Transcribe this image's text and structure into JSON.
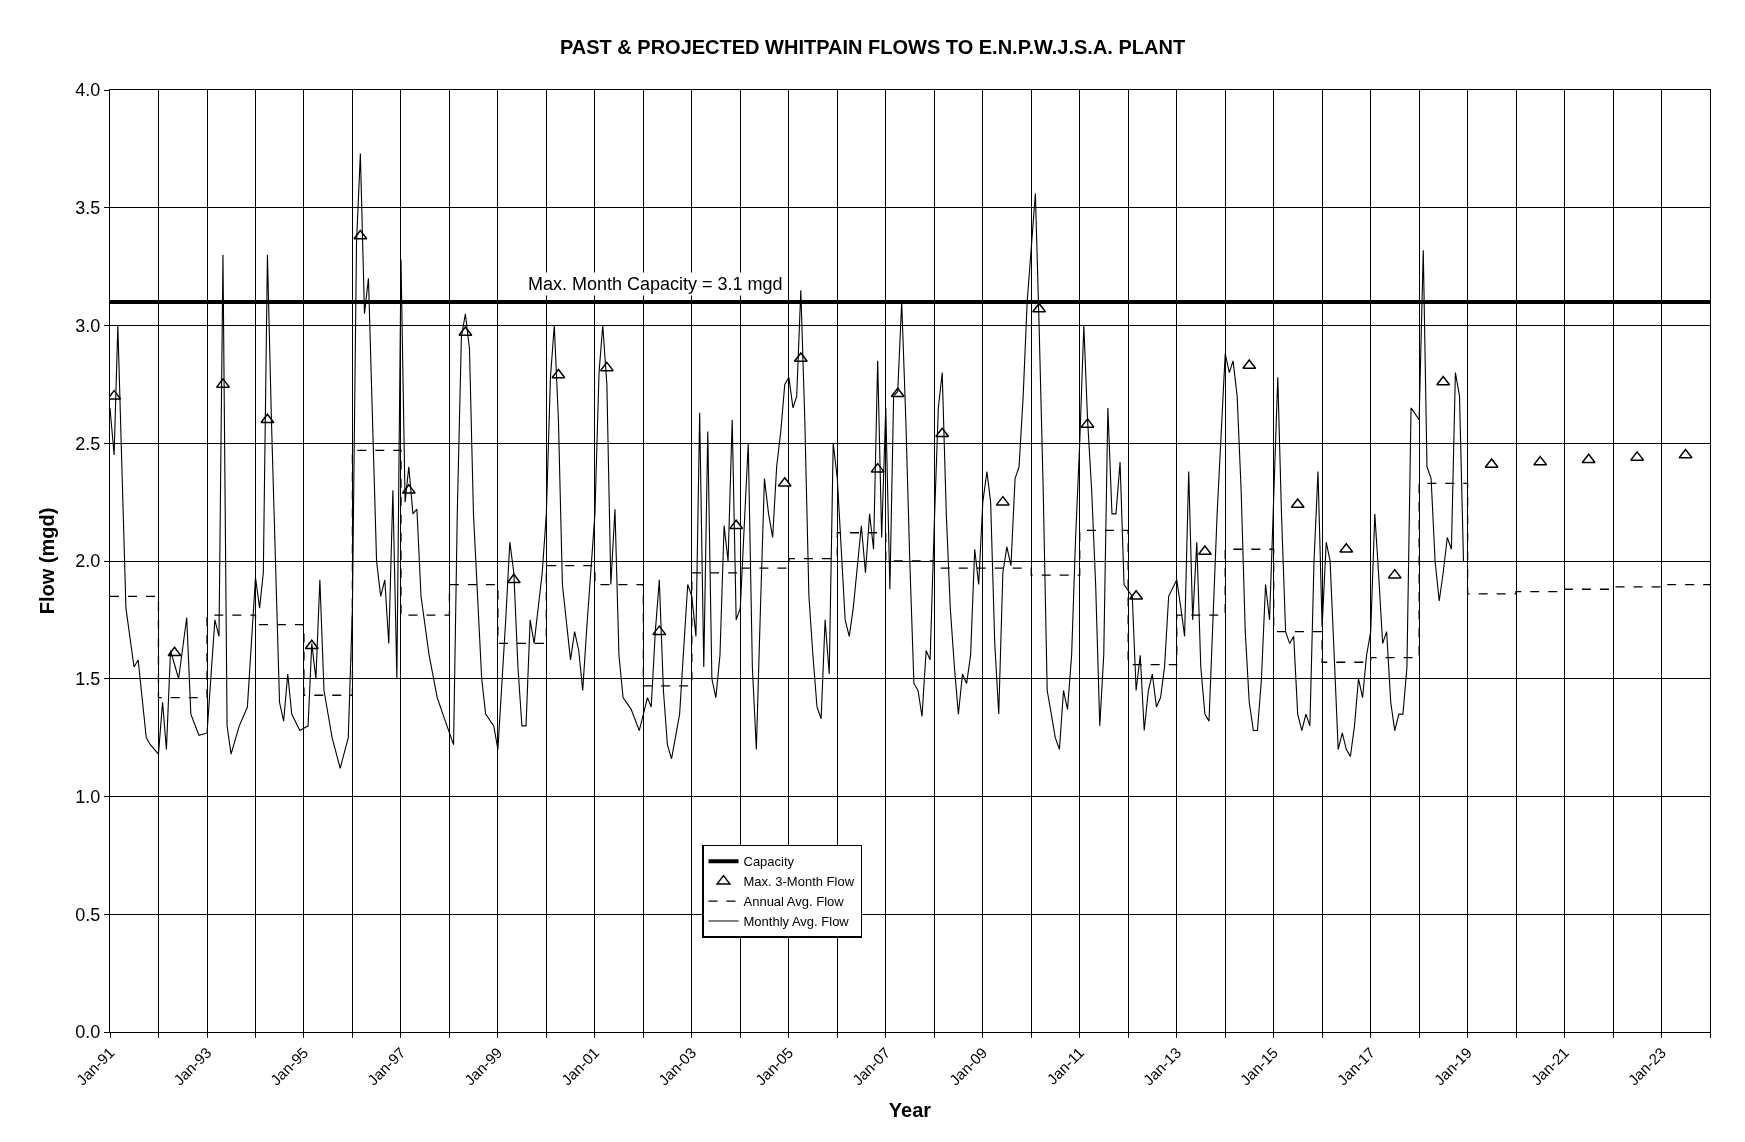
{
  "chart_data": {
    "type": "line",
    "title": "PAST & PROJECTED WHITPAIN FLOWS TO E.N.P.W.J.S.A. PLANT",
    "xlabel": "Year",
    "ylabel": "Flow (mgd)",
    "xlim": [
      "1991-01",
      "2024-01"
    ],
    "ylim": [
      0,
      4
    ],
    "xticks": [
      {
        "value": "1991-01",
        "label": "Jan-91"
      },
      {
        "value": "1992-01",
        "label": null
      },
      {
        "value": "1993-01",
        "label": "Jan-93"
      },
      {
        "value": "1994-01",
        "label": null
      },
      {
        "value": "1995-01",
        "label": "Jan-95"
      },
      {
        "value": "1996-01",
        "label": null
      },
      {
        "value": "1997-01",
        "label": "Jan-97"
      },
      {
        "value": "1998-01",
        "label": null
      },
      {
        "value": "1999-01",
        "label": "Jan-99"
      },
      {
        "value": "2000-01",
        "label": null
      },
      {
        "value": "2001-01",
        "label": "Jan-01"
      },
      {
        "value": "2002-01",
        "label": null
      },
      {
        "value": "2003-01",
        "label": "Jan-03"
      },
      {
        "value": "2004-01",
        "label": null
      },
      {
        "value": "2005-01",
        "label": "Jan-05"
      },
      {
        "value": "2006-01",
        "label": null
      },
      {
        "value": "2007-01",
        "label": "Jan-07"
      },
      {
        "value": "2008-01",
        "label": null
      },
      {
        "value": "2009-01",
        "label": "Jan-09"
      },
      {
        "value": "2010-01",
        "label": null
      },
      {
        "value": "2011-01",
        "label": "Jan-11"
      },
      {
        "value": "2012-01",
        "label": null
      },
      {
        "value": "2013-01",
        "label": "Jan-13"
      },
      {
        "value": "2014-01",
        "label": null
      },
      {
        "value": "2015-01",
        "label": "Jan-15"
      },
      {
        "value": "2016-01",
        "label": null
      },
      {
        "value": "2017-01",
        "label": "Jan-17"
      },
      {
        "value": "2018-01",
        "label": null
      },
      {
        "value": "2019-01",
        "label": "Jan-19"
      },
      {
        "value": "2020-01",
        "label": null
      },
      {
        "value": "2021-01",
        "label": "Jan-21"
      },
      {
        "value": "2022-01",
        "label": null
      },
      {
        "value": "2023-01",
        "label": "Jan-23"
      },
      {
        "value": "2024-01",
        "label": null
      }
    ],
    "yticks": [
      {
        "value": 0,
        "label": "0.0"
      },
      {
        "value": 0.5,
        "label": "0.5"
      },
      {
        "value": 1,
        "label": "1.0"
      },
      {
        "value": 1.5,
        "label": "1.5"
      },
      {
        "value": 2,
        "label": "2.0"
      },
      {
        "value": 2.5,
        "label": "2.5"
      },
      {
        "value": 3,
        "label": "3.0"
      },
      {
        "value": 3.5,
        "label": "3.5"
      },
      {
        "value": 4,
        "label": "4.0"
      }
    ],
    "grid": true,
    "legend": "bottom",
    "annotations": [
      {
        "text": "Max. Month Capacity = 3.1 mgd",
        "x": "2002-04",
        "y": 3.1
      }
    ],
    "series": [
      {
        "name": "Capacity",
        "color": "#000000",
        "line_style": "solid",
        "marker": "none",
        "x": [
          "1991-01",
          "2024-01"
        ],
        "values": [
          3.1,
          3.1
        ]
      },
      {
        "name": "Max. 3-Month Flow",
        "type": "scatter",
        "color": "#000000",
        "marker": "triangle",
        "x": [
          "1991-02",
          "1992-05",
          "1993-05",
          "1994-04",
          "1995-03",
          "1996-03",
          "1997-03",
          "1998-05",
          "1999-05",
          "2000-04",
          "2001-04",
          "2002-05",
          "2003-12",
          "2004-12",
          "2005-04",
          "2006-11",
          "2007-04",
          "2008-03",
          "2009-06",
          "2010-03",
          "2011-03",
          "2012-03",
          "2013-08",
          "2014-07",
          "2015-07",
          "2016-07",
          "2017-07",
          "2018-07",
          "2019-07",
          "2020-07",
          "2021-07",
          "2022-07",
          "2023-07"
        ],
        "values": [
          2.7,
          1.61,
          2.75,
          2.6,
          1.64,
          3.38,
          2.3,
          2.97,
          1.92,
          2.79,
          2.82,
          1.7,
          2.15,
          2.33,
          2.86,
          2.39,
          2.71,
          2.54,
          2.25,
          3.07,
          2.58,
          1.85,
          2.04,
          2.83,
          2.24,
          2.05,
          1.94,
          2.76,
          2.41,
          2.42,
          2.43,
          2.44,
          2.45
        ]
      },
      {
        "name": "Annual Avg. Flow",
        "type": "step",
        "color": "#000000",
        "line_style": "dashed",
        "marker": "none",
        "x": [
          "1991-01",
          "1992-01",
          "1993-01",
          "1994-01",
          "1995-01",
          "1996-01",
          "1997-01",
          "1998-01",
          "1999-01",
          "2000-01",
          "2001-01",
          "2002-01",
          "2003-01",
          "2004-01",
          "2005-01",
          "2006-01",
          "2007-01",
          "2008-01",
          "2009-01",
          "2010-01",
          "2011-01",
          "2012-01",
          "2013-01",
          "2014-01",
          "2015-01",
          "2016-01",
          "2017-01",
          "2018-01",
          "2019-01",
          "2020-01",
          "2021-01",
          "2022-01",
          "2023-01",
          "2024-01"
        ],
        "values": [
          1.85,
          1.42,
          1.77,
          1.73,
          1.43,
          2.47,
          1.77,
          1.9,
          1.65,
          1.98,
          1.9,
          1.47,
          1.95,
          1.97,
          2.01,
          2.12,
          2.0,
          1.97,
          1.97,
          1.94,
          2.13,
          1.56,
          1.77,
          2.05,
          1.7,
          1.57,
          1.59,
          2.33,
          1.86,
          1.87,
          1.88,
          1.89,
          1.9,
          1.9
        ]
      },
      {
        "name": "Monthly Avg. Flow",
        "color": "#000000",
        "line_style": "solid",
        "marker": "none",
        "x": [
          "1991-01",
          "1991-02",
          "1991-03",
          "1991-05",
          "1991-07",
          "1991-08",
          "1991-10",
          "1991-11",
          "1992-01",
          "1992-02",
          "1992-03",
          "1992-04",
          "1992-06",
          "1992-08",
          "1992-09",
          "1992-11",
          "1993-01",
          "1993-03",
          "1993-04",
          "1993-05",
          "1993-06",
          "1993-07",
          "1993-09",
          "1993-11",
          "1994-01",
          "1994-02",
          "1994-03",
          "1994-04",
          "1994-05",
          "1994-07",
          "1994-08",
          "1994-09",
          "1994-10",
          "1994-12",
          "1995-02",
          "1995-03",
          "1995-04",
          "1995-05",
          "1995-06",
          "1995-08",
          "1995-10",
          "1995-12",
          "1996-01",
          "1996-02",
          "1996-03",
          "1996-04",
          "1996-05",
          "1996-07",
          "1996-08",
          "1996-09",
          "1996-10",
          "1996-11",
          "1996-12",
          "1997-01",
          "1997-02",
          "1997-03",
          "1997-04",
          "1997-05",
          "1997-06",
          "1997-08",
          "1997-10",
          "1997-12",
          "1998-02",
          "1998-03",
          "1998-04",
          "1998-05",
          "1998-06",
          "1998-07",
          "1998-09",
          "1998-10",
          "1998-12",
          "1999-01",
          "1999-03",
          "1999-04",
          "1999-05",
          "1999-06",
          "1999-07",
          "1999-08",
          "1999-09",
          "1999-10",
          "1999-12",
          "2000-01",
          "2000-02",
          "2000-03",
          "2000-04",
          "2000-05",
          "2000-07",
          "2000-08",
          "2000-09",
          "2000-10",
          "2000-11",
          "2001-01",
          "2001-02",
          "2001-03",
          "2001-04",
          "2001-05",
          "2001-06",
          "2001-07",
          "2001-08",
          "2001-10",
          "2001-12",
          "2002-02",
          "2002-03",
          "2002-04",
          "2002-05",
          "2002-06",
          "2002-07",
          "2002-08",
          "2002-10",
          "2002-12",
          "2003-01",
          "2003-02",
          "2003-03",
          "2003-04",
          "2003-05",
          "2003-06",
          "2003-07",
          "2003-08",
          "2003-09",
          "2003-10",
          "2003-11",
          "2003-12",
          "2004-01",
          "2004-03",
          "2004-04",
          "2004-05",
          "2004-06",
          "2004-07",
          "2004-08",
          "2004-09",
          "2004-10",
          "2004-11",
          "2004-12",
          "2005-01",
          "2005-02",
          "2005-03",
          "2005-04",
          "2005-05",
          "2005-06",
          "2005-07",
          "2005-08",
          "2005-09",
          "2005-10",
          "2005-11",
          "2005-12",
          "2006-01",
          "2006-03",
          "2006-04",
          "2006-05",
          "2006-07",
          "2006-08",
          "2006-09",
          "2006-10",
          "2006-11",
          "2006-12",
          "2007-01",
          "2007-02",
          "2007-03",
          "2007-04",
          "2007-05",
          "2007-06",
          "2007-07",
          "2007-08",
          "2007-09",
          "2007-10",
          "2007-11",
          "2007-12",
          "2008-01",
          "2008-02",
          "2008-03",
          "2008-04",
          "2008-05",
          "2008-06",
          "2008-07",
          "2008-08",
          "2008-09",
          "2008-10",
          "2008-11",
          "2008-12",
          "2009-01",
          "2009-02",
          "2009-03",
          "2009-04",
          "2009-05",
          "2009-06",
          "2009-07",
          "2009-08",
          "2009-09",
          "2009-10",
          "2009-11",
          "2009-12",
          "2010-02",
          "2010-03",
          "2010-04",
          "2010-05",
          "2010-06",
          "2010-07",
          "2010-08",
          "2010-09",
          "2010-10",
          "2010-11",
          "2010-12",
          "2011-01",
          "2011-02",
          "2011-03",
          "2011-04",
          "2011-05",
          "2011-06",
          "2011-07",
          "2011-08",
          "2011-09",
          "2011-10",
          "2011-11",
          "2011-12",
          "2012-02",
          "2012-03",
          "2012-04",
          "2012-05",
          "2012-06",
          "2012-07",
          "2012-08",
          "2012-09",
          "2012-10",
          "2012-11",
          "2013-01",
          "2013-02",
          "2013-03",
          "2013-04",
          "2013-05",
          "2013-06",
          "2013-07",
          "2013-08",
          "2013-09",
          "2013-11",
          "2014-01",
          "2014-02",
          "2014-03",
          "2014-04",
          "2014-05",
          "2014-06",
          "2014-07",
          "2014-08",
          "2014-09",
          "2014-10",
          "2014-11",
          "2014-12",
          "2015-02",
          "2015-03",
          "2015-04",
          "2015-05",
          "2015-06",
          "2015-07",
          "2015-08",
          "2015-09",
          "2015-10",
          "2015-11",
          "2015-12",
          "2016-01",
          "2016-02",
          "2016-03",
          "2016-04",
          "2016-05",
          "2016-06",
          "2016-07",
          "2016-08",
          "2016-09",
          "2016-10",
          "2016-11",
          "2016-12",
          "2017-01",
          "2017-02",
          "2017-03",
          "2017-04",
          "2017-05",
          "2017-06",
          "2017-07",
          "2017-08",
          "2017-09",
          "2017-10",
          "2017-11",
          "2018-01",
          "2018-02",
          "2018-03",
          "2018-04",
          "2018-05",
          "2018-06",
          "2018-07",
          "2018-08",
          "2018-09",
          "2018-10",
          "2018-11",
          "2018-12"
        ],
        "values": [
          2.65,
          2.45,
          3.0,
          1.8,
          1.55,
          1.58,
          1.25,
          1.22,
          1.18,
          1.4,
          1.2,
          1.62,
          1.5,
          1.76,
          1.35,
          1.26,
          1.27,
          1.75,
          1.68,
          3.3,
          1.3,
          1.18,
          1.3,
          1.38,
          1.93,
          1.8,
          1.95,
          3.3,
          2.6,
          1.4,
          1.32,
          1.52,
          1.35,
          1.28,
          1.3,
          1.65,
          1.5,
          1.92,
          1.45,
          1.25,
          1.12,
          1.25,
          1.8,
          3.35,
          3.73,
          3.05,
          3.2,
          2.0,
          1.85,
          1.92,
          1.65,
          2.3,
          1.5,
          3.28,
          2.25,
          2.4,
          2.2,
          2.22,
          1.85,
          1.6,
          1.42,
          1.32,
          1.22,
          2.2,
          2.95,
          3.05,
          2.9,
          2.2,
          1.5,
          1.35,
          1.3,
          1.2,
          1.75,
          2.08,
          1.95,
          1.55,
          1.3,
          1.3,
          1.75,
          1.65,
          1.95,
          2.2,
          2.78,
          3.0,
          2.6,
          1.9,
          1.58,
          1.7,
          1.62,
          1.45,
          1.72,
          2.2,
          2.8,
          3.0,
          2.75,
          1.9,
          2.22,
          1.6,
          1.42,
          1.37,
          1.28,
          1.42,
          1.38,
          1.7,
          1.92,
          1.45,
          1.22,
          1.16,
          1.35,
          1.9,
          1.85,
          1.68,
          2.63,
          1.55,
          2.55,
          1.5,
          1.42,
          1.6,
          2.15,
          2.0,
          2.6,
          1.75,
          1.8,
          2.5,
          1.55,
          1.2,
          1.8,
          2.35,
          2.2,
          2.1,
          2.4,
          2.55,
          2.75,
          2.78,
          2.65,
          2.7,
          3.15,
          2.6,
          1.85,
          1.6,
          1.38,
          1.33,
          1.75,
          1.52,
          2.5,
          2.35,
          1.75,
          1.68,
          1.8,
          2.15,
          1.95,
          2.2,
          2.05,
          2.85,
          2.1,
          2.65,
          1.88,
          2.7,
          2.72,
          3.1,
          2.6,
          2.0,
          1.48,
          1.45,
          1.34,
          1.62,
          1.58,
          2.15,
          2.65,
          2.8,
          2.2,
          1.8,
          1.55,
          1.35,
          1.52,
          1.48,
          1.6,
          2.05,
          1.9,
          2.25,
          2.38,
          2.25,
          1.65,
          1.35,
          1.95,
          2.06,
          1.98,
          2.35,
          2.4,
          2.7,
          3.1,
          3.56,
          3.0,
          2.3,
          1.45,
          1.35,
          1.25,
          1.2,
          1.45,
          1.37,
          1.6,
          2.1,
          2.5,
          3.0,
          2.6,
          2.3,
          1.9,
          1.3,
          1.6,
          2.65,
          2.2,
          2.2,
          2.42,
          1.9,
          1.85,
          1.45,
          1.6,
          1.28,
          1.45,
          1.52,
          1.38,
          1.42,
          1.55,
          1.85,
          1.92,
          1.8,
          1.68,
          2.38,
          1.75,
          2.08,
          1.55,
          1.35,
          1.32,
          2.2,
          2.88,
          2.8,
          2.85,
          2.7,
          2.3,
          1.7,
          1.4,
          1.28,
          1.28,
          1.5,
          1.9,
          1.75,
          2.78,
          2.2,
          1.7,
          1.65,
          1.68,
          1.35,
          1.28,
          1.35,
          1.3,
          2.0,
          2.38,
          1.72,
          2.08,
          2.0,
          1.6,
          1.2,
          1.27,
          1.2,
          1.17,
          1.3,
          1.5,
          1.42,
          1.6,
          1.7,
          2.2,
          1.95,
          1.65,
          1.7,
          1.4,
          1.28,
          1.35,
          1.35,
          1.55,
          2.65,
          2.6,
          3.32,
          2.4,
          2.35,
          2.0,
          1.83,
          1.95,
          2.1,
          2.05,
          2.8,
          2.7,
          2.0
        ]
      }
    ]
  }
}
